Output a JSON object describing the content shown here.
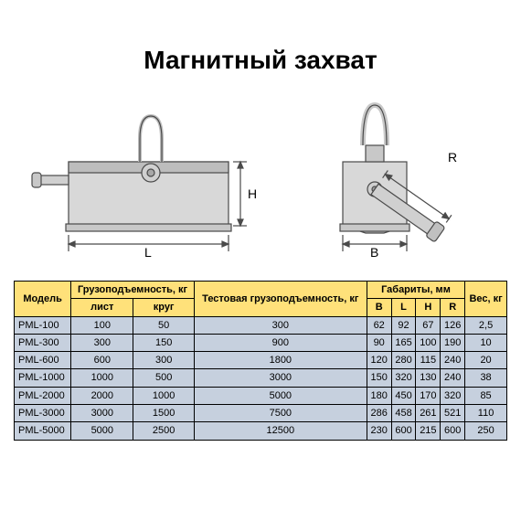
{
  "title": "Магнитный захват",
  "diagram": {
    "stroke": "#4a4a4a",
    "fill_light": "#d8d8d8",
    "fill_mid": "#bdbdbd",
    "labels": {
      "L": "L",
      "H": "H",
      "B": "B",
      "R": "R"
    }
  },
  "table": {
    "header_bg": "#ffe17a",
    "body_bg": "#c6d0de",
    "border_color": "#000000",
    "header": {
      "model": "Модель",
      "capacity_group": "Грузоподъемность, кг",
      "capacity_sheet": "лист",
      "capacity_round": "круг",
      "test_capacity": "Тестовая грузоподъемность, кг",
      "dims_group": "Габариты, мм",
      "B": "B",
      "L": "L",
      "H": "H",
      "R": "R",
      "weight": "Вес, кг"
    },
    "rows": [
      {
        "model": "PML-100",
        "sheet": "100",
        "round": "50",
        "test": "300",
        "B": "62",
        "L": "92",
        "H": "67",
        "R": "126",
        "wt": "2,5"
      },
      {
        "model": "PML-300",
        "sheet": "300",
        "round": "150",
        "test": "900",
        "B": "90",
        "L": "165",
        "H": "100",
        "R": "190",
        "wt": "10"
      },
      {
        "model": "PML-600",
        "sheet": "600",
        "round": "300",
        "test": "1800",
        "B": "120",
        "L": "280",
        "H": "115",
        "R": "240",
        "wt": "20"
      },
      {
        "model": "PML-1000",
        "sheet": "1000",
        "round": "500",
        "test": "3000",
        "B": "150",
        "L": "320",
        "H": "130",
        "R": "240",
        "wt": "38"
      },
      {
        "model": "PML-2000",
        "sheet": "2000",
        "round": "1000",
        "test": "5000",
        "B": "180",
        "L": "450",
        "H": "170",
        "R": "320",
        "wt": "85"
      },
      {
        "model": "PML-3000",
        "sheet": "3000",
        "round": "1500",
        "test": "7500",
        "B": "286",
        "L": "458",
        "H": "261",
        "R": "521",
        "wt": "110"
      },
      {
        "model": "PML-5000",
        "sheet": "5000",
        "round": "2500",
        "test": "12500",
        "B": "230",
        "L": "600",
        "H": "215",
        "R": "600",
        "wt": "250"
      }
    ]
  }
}
